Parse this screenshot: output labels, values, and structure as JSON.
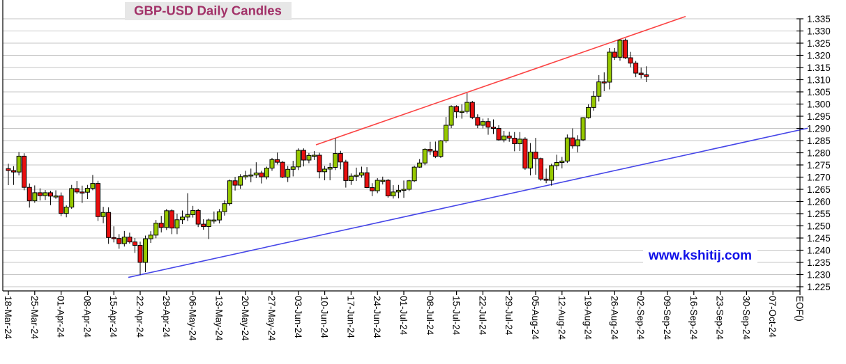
{
  "title": "GBP-USD Daily Candles",
  "watermark": "www.kshitij.com",
  "colors": {
    "up_candle": "#96C800",
    "down_candle": "#E80F0F",
    "wick": "#000000",
    "grid": "#C6C6C6",
    "axis": "#000000",
    "label_text": "#000000",
    "resistance_line": "#FB4343",
    "support_line": "#4646E8",
    "title_color": "#A23168",
    "title_bg": "#E7E7E7",
    "watermark_color": "#1111E8"
  },
  "axis": {
    "y_tick_labels": [
      "1.225",
      "1.230",
      "1.235",
      "1.240",
      "1.245",
      "1.250",
      "1.255",
      "1.260",
      "1.265",
      "1.270",
      "1.275",
      "1.280",
      "1.285",
      "1.290",
      "1.295",
      "1.300",
      "1.305",
      "1.310",
      "1.315",
      "1.320",
      "1.325",
      "1.330",
      "1.335"
    ],
    "x_tick_labels": [
      "18-Mar-24",
      "25-Mar-24",
      "01-Apr-24",
      "08-Apr-24",
      "15-Apr-24",
      "22-Apr-24",
      "29-Apr-24",
      "06-May-24",
      "13-May-24",
      "20-May-24",
      "27-May-24",
      "03-Jun-24",
      "10-Jun-24",
      "17-Jun-24",
      "24-Jun-24",
      "01-Jul-24",
      "08-Jul-24",
      "15-Jul-24",
      "22-Jul-24",
      "29-Jul-24",
      "05-Aug-24",
      "12-Aug-24",
      "19-Aug-24",
      "26-Aug-24",
      "02-Sep-24",
      "09-Sep-24",
      "16-Sep-24",
      "23-Sep-24",
      "30-Sep-24",
      "07-Oct-24"
    ],
    "end_label": "EOF()"
  },
  "chart_data": {
    "type": "candlestick",
    "title": "GBP-USD Daily Candles",
    "instrument": "GBP-USD",
    "interval": "daily",
    "ylim": [
      1.225,
      1.335
    ],
    "y_tick_step": 0.005,
    "x_tick_interval": "weekly",
    "grid": "horizontal",
    "legend": "none",
    "columns": [
      "date",
      "open",
      "high",
      "low",
      "close"
    ],
    "candles": [
      [
        "18-Mar-24",
        1.2735,
        1.2755,
        1.2667,
        1.2727
      ],
      [
        "19-Mar-24",
        1.2727,
        1.2745,
        1.2668,
        1.2721
      ],
      [
        "20-Mar-24",
        1.2721,
        1.2803,
        1.2707,
        1.2786
      ],
      [
        "21-Mar-24",
        1.2786,
        1.2798,
        1.2646,
        1.2658
      ],
      [
        "22-Mar-24",
        1.2658,
        1.2674,
        1.2575,
        1.2603
      ],
      [
        "25-Mar-24",
        1.2603,
        1.2666,
        1.2595,
        1.2636
      ],
      [
        "26-Mar-24",
        1.2636,
        1.2654,
        1.2604,
        1.2624
      ],
      [
        "27-Mar-24",
        1.2624,
        1.2647,
        1.2606,
        1.2636
      ],
      [
        "28-Mar-24",
        1.2636,
        1.2644,
        1.2585,
        1.2622
      ],
      [
        "29-Mar-24",
        1.2622,
        1.2646,
        1.2611,
        1.2623
      ],
      [
        "01-Apr-24",
        1.2623,
        1.2637,
        1.254,
        1.2551
      ],
      [
        "02-Apr-24",
        1.2551,
        1.2584,
        1.2535,
        1.2577
      ],
      [
        "03-Apr-24",
        1.2577,
        1.2668,
        1.257,
        1.2653
      ],
      [
        "04-Apr-24",
        1.2653,
        1.2684,
        1.2631,
        1.2639
      ],
      [
        "05-Apr-24",
        1.2639,
        1.2665,
        1.2594,
        1.2638
      ],
      [
        "08-Apr-24",
        1.2638,
        1.2668,
        1.261,
        1.2654
      ],
      [
        "09-Apr-24",
        1.2654,
        1.2709,
        1.2646,
        1.2674
      ],
      [
        "10-Apr-24",
        1.2674,
        1.2685,
        1.252,
        1.2538
      ],
      [
        "11-Apr-24",
        1.2538,
        1.2578,
        1.2511,
        1.2555
      ],
      [
        "12-Apr-24",
        1.2555,
        1.2576,
        1.2426,
        1.2452
      ],
      [
        "15-Apr-24",
        1.2452,
        1.2498,
        1.2432,
        1.2448
      ],
      [
        "16-Apr-24",
        1.2448,
        1.2466,
        1.2406,
        1.2427
      ],
      [
        "17-Apr-24",
        1.2427,
        1.2479,
        1.2415,
        1.2454
      ],
      [
        "18-Apr-24",
        1.2454,
        1.2472,
        1.2427,
        1.2434
      ],
      [
        "19-Apr-24",
        1.2434,
        1.245,
        1.2389,
        1.242
      ],
      [
        "22-Apr-24",
        1.242,
        1.2435,
        1.2299,
        1.235
      ],
      [
        "23-Apr-24",
        1.235,
        1.246,
        1.231,
        1.2447
      ],
      [
        "24-Apr-24",
        1.2447,
        1.2478,
        1.243,
        1.2462
      ],
      [
        "25-Apr-24",
        1.2462,
        1.2524,
        1.2449,
        1.2511
      ],
      [
        "26-Apr-24",
        1.2511,
        1.2541,
        1.2473,
        1.2493
      ],
      [
        "29-Apr-24",
        1.2493,
        1.2569,
        1.2483,
        1.2562
      ],
      [
        "30-Apr-24",
        1.2562,
        1.2568,
        1.2466,
        1.2491
      ],
      [
        "01-May-24",
        1.2491,
        1.255,
        1.2466,
        1.2525
      ],
      [
        "02-May-24",
        1.2525,
        1.2563,
        1.2507,
        1.2536
      ],
      [
        "03-May-24",
        1.2536,
        1.2634,
        1.252,
        1.2546
      ],
      [
        "06-May-24",
        1.2546,
        1.2582,
        1.2534,
        1.2563
      ],
      [
        "07-May-24",
        1.2563,
        1.257,
        1.2495,
        1.2507
      ],
      [
        "08-May-24",
        1.2507,
        1.2527,
        1.2484,
        1.2497
      ],
      [
        "09-May-24",
        1.2497,
        1.253,
        1.2446,
        1.2524
      ],
      [
        "10-May-24",
        1.2524,
        1.2559,
        1.2509,
        1.2524
      ],
      [
        "13-May-24",
        1.2524,
        1.2569,
        1.251,
        1.2558
      ],
      [
        "14-May-24",
        1.2558,
        1.2605,
        1.2542,
        1.2591
      ],
      [
        "15-May-24",
        1.2591,
        1.269,
        1.2583,
        1.2685
      ],
      [
        "16-May-24",
        1.2685,
        1.2701,
        1.2645,
        1.2667
      ],
      [
        "17-May-24",
        1.2667,
        1.2712,
        1.2652,
        1.2702
      ],
      [
        "20-May-24",
        1.2702,
        1.2726,
        1.269,
        1.2706
      ],
      [
        "21-May-24",
        1.2706,
        1.2735,
        1.2679,
        1.2709
      ],
      [
        "22-May-24",
        1.2709,
        1.2761,
        1.2696,
        1.2717
      ],
      [
        "23-May-24",
        1.2717,
        1.2726,
        1.2674,
        1.2701
      ],
      [
        "24-May-24",
        1.2701,
        1.2743,
        1.2691,
        1.2737
      ],
      [
        "27-May-24",
        1.2737,
        1.2779,
        1.2726,
        1.2772
      ],
      [
        "28-May-24",
        1.2772,
        1.2801,
        1.2752,
        1.2761
      ],
      [
        "29-May-24",
        1.2761,
        1.2766,
        1.2696,
        1.27
      ],
      [
        "30-May-24",
        1.27,
        1.2746,
        1.268,
        1.2732
      ],
      [
        "31-May-24",
        1.2732,
        1.2767,
        1.2703,
        1.2742
      ],
      [
        "03-Jun-24",
        1.2742,
        1.2818,
        1.2729,
        1.281
      ],
      [
        "04-Jun-24",
        1.281,
        1.2818,
        1.2744,
        1.277
      ],
      [
        "05-Jun-24",
        1.277,
        1.2799,
        1.2757,
        1.2789
      ],
      [
        "06-Jun-24",
        1.2789,
        1.2807,
        1.277,
        1.279
      ],
      [
        "07-Jun-24",
        1.279,
        1.28,
        1.2695,
        1.2722
      ],
      [
        "10-Jun-24",
        1.2722,
        1.2746,
        1.2687,
        1.2733
      ],
      [
        "11-Jun-24",
        1.2733,
        1.2759,
        1.2687,
        1.274
      ],
      [
        "12-Jun-24",
        1.274,
        1.286,
        1.2729,
        1.2797
      ],
      [
        "13-Jun-24",
        1.2797,
        1.2808,
        1.2732,
        1.2762
      ],
      [
        "14-Jun-24",
        1.2762,
        1.2771,
        1.2657,
        1.2686
      ],
      [
        "17-Jun-24",
        1.2686,
        1.2715,
        1.2668,
        1.2704
      ],
      [
        "18-Jun-24",
        1.2704,
        1.2739,
        1.2684,
        1.2708
      ],
      [
        "19-Jun-24",
        1.2708,
        1.2743,
        1.2698,
        1.2718
      ],
      [
        "20-Jun-24",
        1.2718,
        1.2741,
        1.2655,
        1.2657
      ],
      [
        "21-Jun-24",
        1.2657,
        1.2675,
        1.2622,
        1.2644
      ],
      [
        "24-Jun-24",
        1.2644,
        1.2696,
        1.2634,
        1.2687
      ],
      [
        "25-Jun-24",
        1.2687,
        1.2702,
        1.267,
        1.2687
      ],
      [
        "26-Jun-24",
        1.2687,
        1.2692,
        1.2616,
        1.2623
      ],
      [
        "27-Jun-24",
        1.2623,
        1.2667,
        1.2612,
        1.2639
      ],
      [
        "28-Jun-24",
        1.2639,
        1.2668,
        1.2613,
        1.2646
      ],
      [
        "01-Jul-24",
        1.2646,
        1.2686,
        1.2615,
        1.265
      ],
      [
        "02-Jul-24",
        1.265,
        1.2689,
        1.2643,
        1.2685
      ],
      [
        "03-Jul-24",
        1.2685,
        1.2747,
        1.268,
        1.2741
      ],
      [
        "04-Jul-24",
        1.2741,
        1.2774,
        1.2738,
        1.2758
      ],
      [
        "05-Jul-24",
        1.2758,
        1.2819,
        1.2749,
        1.2814
      ],
      [
        "08-Jul-24",
        1.2814,
        1.2845,
        1.2791,
        1.2807
      ],
      [
        "09-Jul-24",
        1.2807,
        1.2846,
        1.2778,
        1.2785
      ],
      [
        "10-Jul-24",
        1.2785,
        1.2852,
        1.2779,
        1.2849
      ],
      [
        "11-Jul-24",
        1.2849,
        1.2947,
        1.2841,
        1.2913
      ],
      [
        "12-Jul-24",
        1.2913,
        1.2995,
        1.2901,
        1.299
      ],
      [
        "15-Jul-24",
        1.299,
        1.2995,
        1.2942,
        1.2968
      ],
      [
        "16-Jul-24",
        1.2968,
        1.2999,
        1.294,
        1.297
      ],
      [
        "17-Jul-24",
        1.297,
        1.3045,
        1.2961,
        1.3007
      ],
      [
        "18-Jul-24",
        1.3007,
        1.3013,
        1.2938,
        1.2945
      ],
      [
        "19-Jul-24",
        1.2945,
        1.2958,
        1.2901,
        1.2913
      ],
      [
        "22-Jul-24",
        1.2913,
        1.294,
        1.29,
        1.2928
      ],
      [
        "23-Jul-24",
        1.2928,
        1.2942,
        1.2874,
        1.2905
      ],
      [
        "24-Jul-24",
        1.2905,
        1.2937,
        1.2877,
        1.29
      ],
      [
        "25-Jul-24",
        1.29,
        1.2913,
        1.285,
        1.2853
      ],
      [
        "26-Jul-24",
        1.2853,
        1.289,
        1.2843,
        1.2869
      ],
      [
        "29-Jul-24",
        1.2869,
        1.2886,
        1.2845,
        1.286
      ],
      [
        "30-Jul-24",
        1.286,
        1.2885,
        1.2806,
        1.2837
      ],
      [
        "31-Jul-24",
        1.2837,
        1.2885,
        1.2807,
        1.2856
      ],
      [
        "01-Aug-24",
        1.2856,
        1.2864,
        1.273,
        1.2737
      ],
      [
        "02-Aug-24",
        1.2737,
        1.284,
        1.2707,
        1.2803
      ],
      [
        "05-Aug-24",
        1.2803,
        1.2861,
        1.271,
        1.2776
      ],
      [
        "06-Aug-24",
        1.2776,
        1.278,
        1.2685,
        1.2692
      ],
      [
        "07-Aug-24",
        1.2692,
        1.2735,
        1.2675,
        1.2687
      ],
      [
        "08-Aug-24",
        1.2687,
        1.2755,
        1.2665,
        1.2747
      ],
      [
        "09-Aug-24",
        1.2747,
        1.2792,
        1.273,
        1.276
      ],
      [
        "12-Aug-24",
        1.276,
        1.2783,
        1.2736,
        1.2766
      ],
      [
        "13-Aug-24",
        1.2766,
        1.2875,
        1.2758,
        1.2861
      ],
      [
        "14-Aug-24",
        1.2861,
        1.29,
        1.2817,
        1.2828
      ],
      [
        "15-Aug-24",
        1.2828,
        1.2872,
        1.2802,
        1.2853
      ],
      [
        "16-Aug-24",
        1.2853,
        1.2946,
        1.2848,
        1.2944
      ],
      [
        "19-Aug-24",
        1.2944,
        1.2999,
        1.294,
        1.2986
      ],
      [
        "20-Aug-24",
        1.2986,
        1.3053,
        1.2973,
        1.3032
      ],
      [
        "21-Aug-24",
        1.3032,
        1.3119,
        1.3011,
        1.3091
      ],
      [
        "22-Aug-24",
        1.3091,
        1.313,
        1.3053,
        1.309
      ],
      [
        "23-Aug-24",
        1.309,
        1.323,
        1.306,
        1.3213
      ],
      [
        "26-Aug-24",
        1.3213,
        1.323,
        1.3181,
        1.3192
      ],
      [
        "27-Aug-24",
        1.3192,
        1.3266,
        1.3178,
        1.3262
      ],
      [
        "28-Aug-24",
        1.3262,
        1.3269,
        1.3185,
        1.319
      ],
      [
        "29-Aug-24",
        1.319,
        1.3214,
        1.3151,
        1.3168
      ],
      [
        "30-Aug-24",
        1.3168,
        1.3177,
        1.311,
        1.3127
      ],
      [
        "02-Sep-24",
        1.3127,
        1.315,
        1.3105,
        1.312
      ],
      [
        "03-Sep-24",
        1.312,
        1.3155,
        1.309,
        1.3113
      ]
    ],
    "trendlines": [
      {
        "name": "rising-resistance",
        "color_key": "resistance_line",
        "anchors": [
          [
            "12-Jun-24",
            1.286
          ],
          [
            "27-Aug-24",
            1.3266
          ]
        ]
      },
      {
        "name": "rising-support",
        "color_key": "support_line",
        "anchors": [
          [
            "22-Apr-24",
            1.2299
          ],
          [
            "07-Aug-24",
            1.2665
          ]
        ]
      }
    ]
  }
}
